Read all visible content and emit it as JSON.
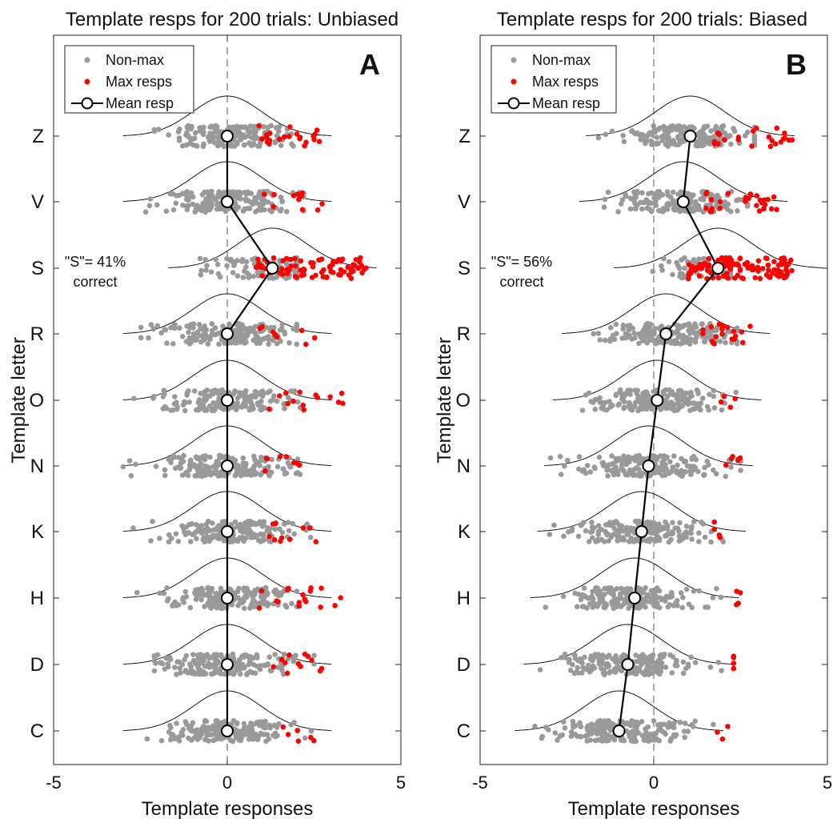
{
  "figure": {
    "ylabel": "Template letter",
    "letters": [
      "C",
      "D",
      "H",
      "K",
      "N",
      "O",
      "R",
      "S",
      "V",
      "Z"
    ],
    "legend": {
      "nonmax": "Non-max",
      "max": "Max resps",
      "mean": "Mean resp"
    },
    "colors": {
      "nonmax": "#999999",
      "max": "#ff0000",
      "mean_line": "#000000",
      "curve": "#000000"
    }
  },
  "chart_data": [
    {
      "type": "scatter",
      "panel_letter": "A",
      "title": "Template resps for 200 trials: Unbiased",
      "xlabel": "Template responses",
      "xlim": [
        -5,
        5
      ],
      "xticks": [
        -5,
        0,
        5
      ],
      "annotation": [
        "\"S\"= 41%",
        "correct"
      ],
      "categories": [
        "C",
        "D",
        "H",
        "K",
        "N",
        "O",
        "R",
        "S",
        "V",
        "Z"
      ],
      "mean_resp": [
        0,
        0,
        0,
        0,
        0,
        0,
        0,
        1.3,
        0,
        0
      ],
      "curve_center": [
        0,
        0,
        0,
        0,
        0,
        0,
        0,
        1.3,
        0,
        0
      ],
      "max_resps_count": [
        6,
        12,
        18,
        10,
        8,
        14,
        8,
        82,
        12,
        22
      ],
      "non_max_count": [
        194,
        188,
        182,
        190,
        192,
        186,
        192,
        118,
        188,
        178
      ],
      "max_resps_min_x": [
        1.6,
        1.3,
        0.8,
        1.2,
        0.9,
        0.9,
        0.8,
        0.8,
        1.0,
        0.7
      ],
      "range": [
        [
          -3.4,
          2.5
        ],
        [
          -2.1,
          2.8
        ],
        [
          -2.6,
          3.4
        ],
        [
          -3.1,
          2.6
        ],
        [
          -3.0,
          2.1
        ],
        [
          -2.8,
          3.4
        ],
        [
          -2.7,
          2.8
        ],
        [
          -1.9,
          4.0
        ],
        [
          -3.6,
          2.8
        ],
        [
          -2.1,
          2.7
        ]
      ],
      "mean_line": true,
      "zero_line": true
    },
    {
      "type": "scatter",
      "panel_letter": "B",
      "title": "Template resps for 200 trials: Biased",
      "xlabel": "Template responses",
      "xlim": [
        -5,
        5
      ],
      "xticks": [
        -5,
        0,
        5
      ],
      "annotation": [
        "\"S\"= 56%",
        "correct"
      ],
      "categories": [
        "C",
        "D",
        "H",
        "K",
        "N",
        "O",
        "R",
        "S",
        "V",
        "Z"
      ],
      "mean_resp": [
        -1.0,
        -0.75,
        -0.55,
        -0.35,
        -0.15,
        0.1,
        0.35,
        1.85,
        0.85,
        1.05
      ],
      "curve_center": [
        -1.0,
        -0.75,
        -0.55,
        -0.35,
        -0.15,
        0.1,
        0.35,
        1.85,
        0.85,
        1.05
      ],
      "max_resps_count": [
        3,
        4,
        4,
        4,
        6,
        4,
        20,
        112,
        28,
        22
      ],
      "non_max_count": [
        197,
        196,
        196,
        196,
        194,
        196,
        180,
        88,
        172,
        178
      ],
      "max_resps_min_x": [
        1.4,
        2.3,
        2.3,
        1.7,
        1.7,
        1.9,
        1.2,
        1.0,
        1.5,
        1.7
      ],
      "range": [
        [
          -3.6,
          2.3
        ],
        [
          -3.4,
          2.3
        ],
        [
          -4.1,
          2.5
        ],
        [
          -3.0,
          2.0
        ],
        [
          -3.7,
          2.5
        ],
        [
          -2.8,
          2.4
        ],
        [
          -2.4,
          2.8
        ],
        [
          -0.6,
          4.0
        ],
        [
          -2.0,
          3.6
        ],
        [
          -2.7,
          4.0
        ]
      ],
      "mean_line": true,
      "zero_line": true
    }
  ]
}
